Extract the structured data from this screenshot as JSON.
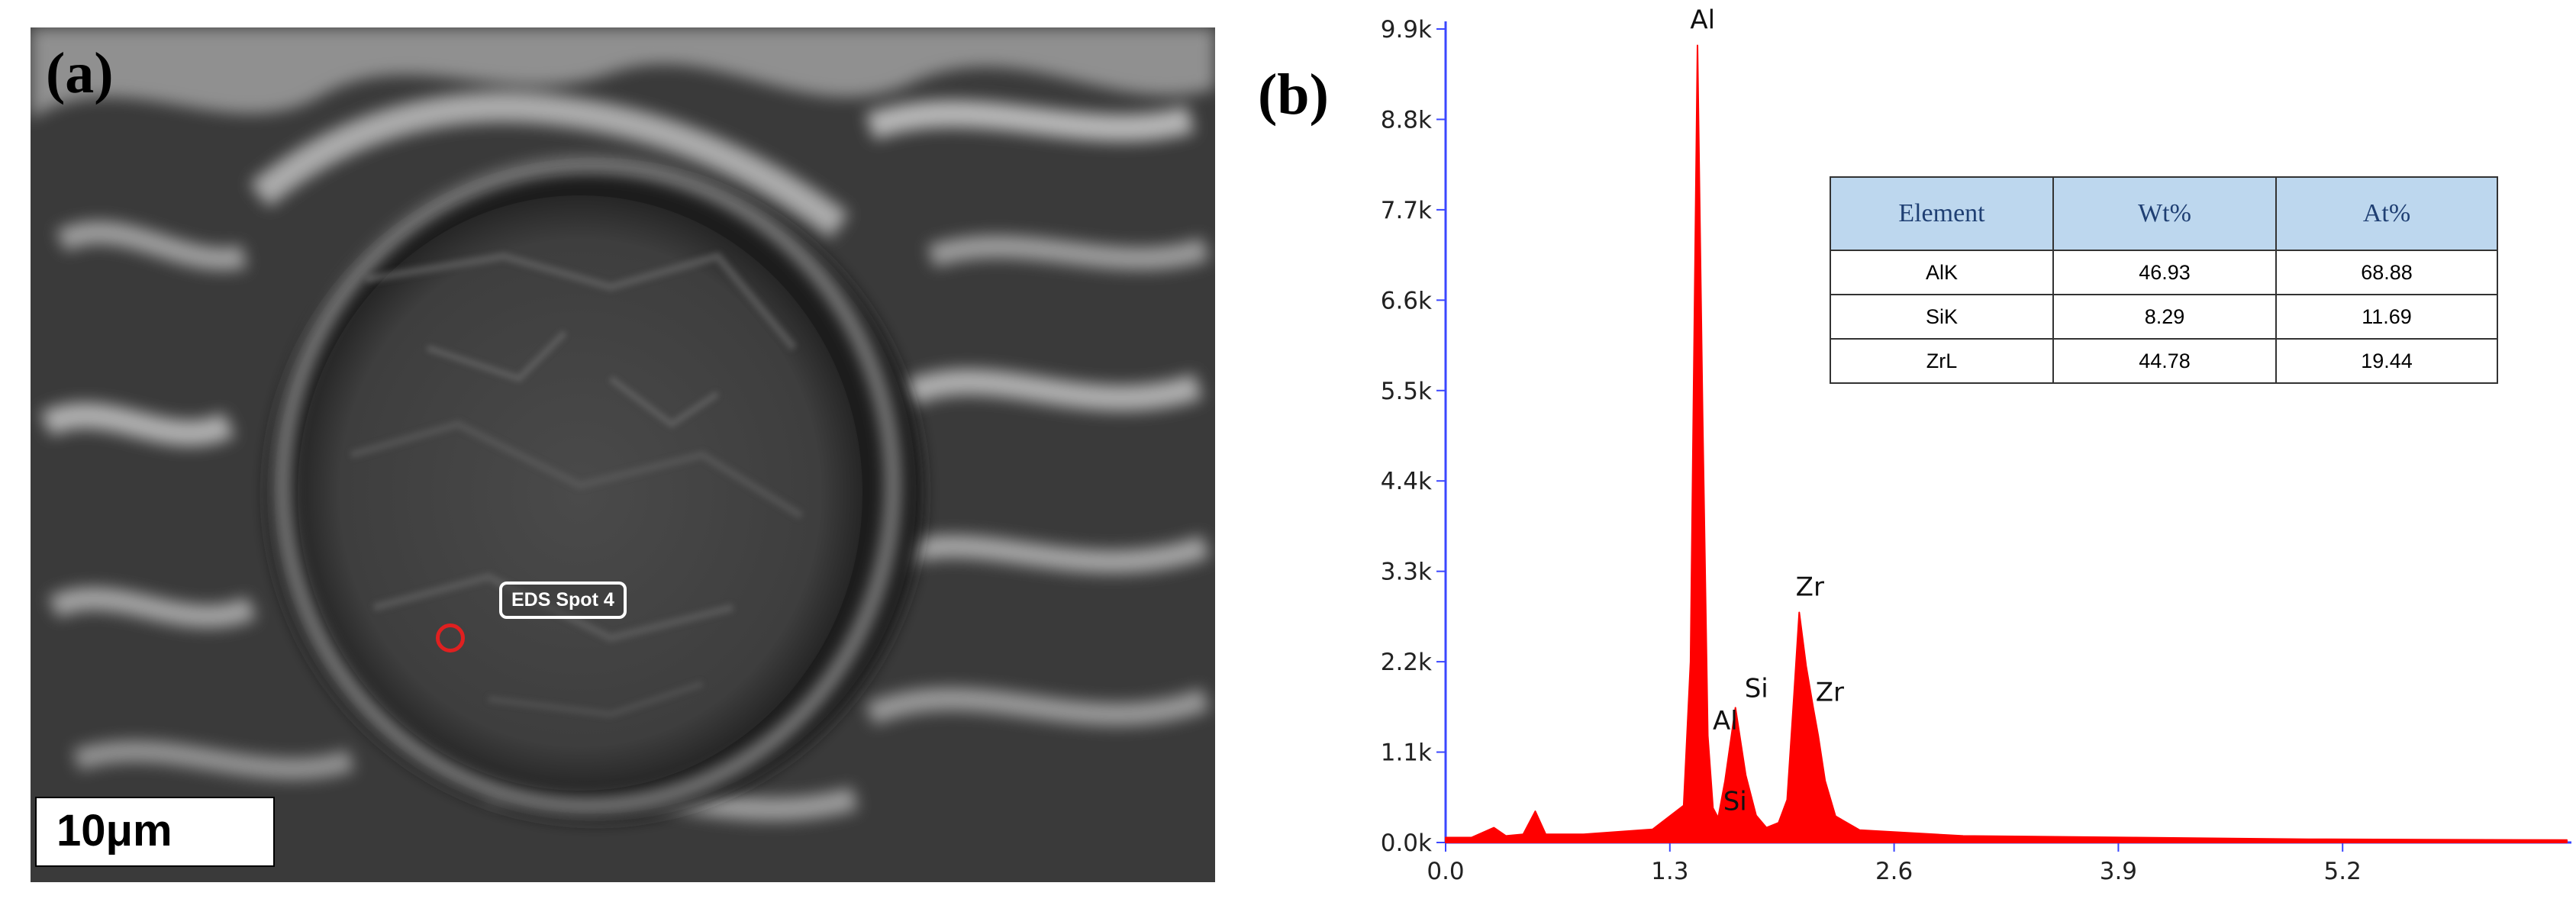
{
  "panel_a": {
    "label": "(a)",
    "spot_label": "EDS Spot 4",
    "scale_bar": "10μm"
  },
  "panel_b": {
    "label": "(b)"
  },
  "chart_data": {
    "type": "line",
    "title": "",
    "xlabel": "",
    "ylabel": "",
    "xlim": [
      0.0,
      6.5
    ],
    "ylim": [
      0,
      9900
    ],
    "x_ticks": [
      "0.0",
      "1.3",
      "2.6",
      "3.9",
      "5.2"
    ],
    "y_ticks": [
      "0.0k",
      "1.1k",
      "2.2k",
      "3.3k",
      "4.4k",
      "5.5k",
      "6.6k",
      "7.7k",
      "8.8k",
      "9.9k"
    ],
    "grid": false,
    "legend": "none",
    "series": [
      {
        "color": "#ff0000",
        "x": [
          0.0,
          0.15,
          0.28,
          0.35,
          0.45,
          0.52,
          0.58,
          0.8,
          1.2,
          1.38,
          1.42,
          1.46,
          1.49,
          1.52,
          1.55,
          1.58,
          1.62,
          1.68,
          1.74,
          1.8,
          1.86,
          1.93,
          1.98,
          2.02,
          2.05,
          2.09,
          2.13,
          2.16,
          2.2,
          2.26,
          2.4,
          3.0,
          4.0,
          5.0,
          6.5
        ],
        "y": [
          60,
          60,
          180,
          80,
          100,
          380,
          100,
          100,
          160,
          450,
          2200,
          9700,
          5200,
          1300,
          420,
          300,
          750,
          1640,
          820,
          330,
          180,
          240,
          520,
          1800,
          2800,
          2150,
          1650,
          1300,
          750,
          320,
          150,
          80,
          60,
          40,
          30
        ]
      }
    ],
    "annotations": [
      {
        "text": "Al",
        "x": 1.49,
        "y": 9700
      },
      {
        "text": "Al",
        "x": 1.55,
        "y": 1300
      },
      {
        "text": "Si",
        "x": 1.74,
        "y": 1640
      },
      {
        "text": "Si",
        "x": 1.74,
        "y": 820
      },
      {
        "text": "Zr",
        "x": 2.05,
        "y": 2800
      },
      {
        "text": "Zr",
        "x": 2.13,
        "y": 1650
      }
    ]
  },
  "table": {
    "headers": [
      "Element",
      "Wt%",
      "At%"
    ],
    "rows": [
      [
        "AlK",
        "46.93",
        "68.88"
      ],
      [
        "SiK",
        "8.29",
        "11.69"
      ],
      [
        "ZrL",
        "44.78",
        "19.44"
      ]
    ]
  }
}
